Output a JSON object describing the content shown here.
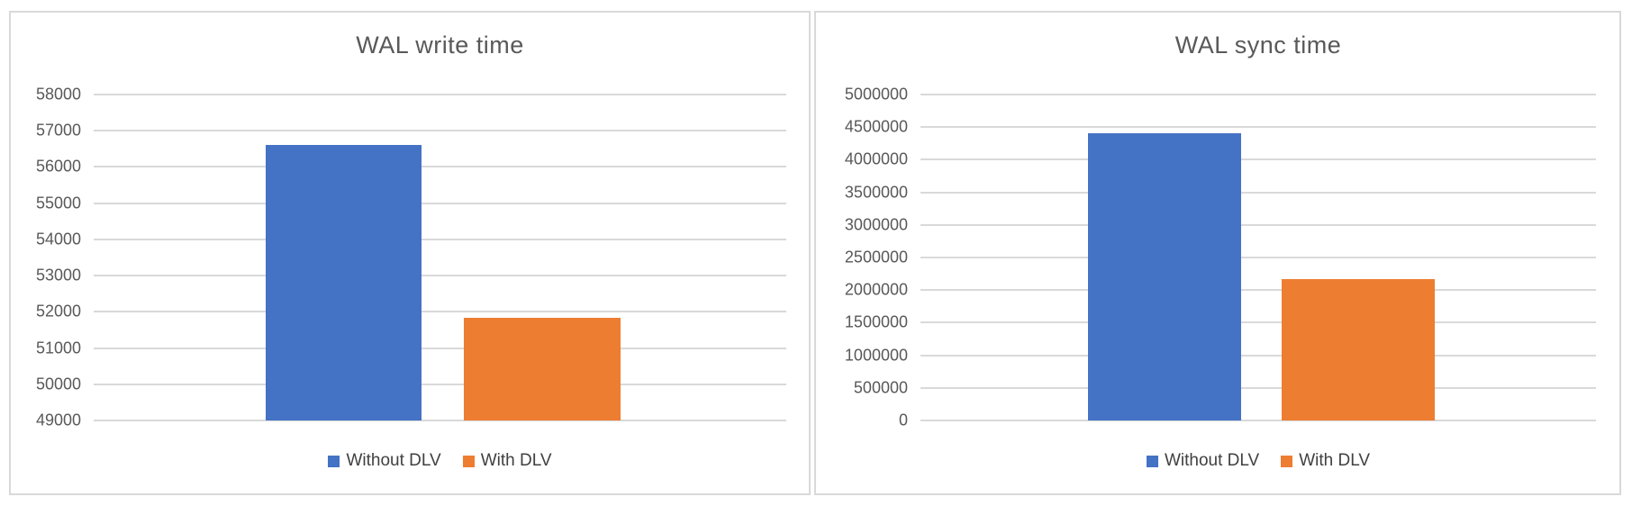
{
  "chart_data": [
    {
      "type": "bar",
      "title": "WAL write time",
      "categories": [
        ""
      ],
      "series": [
        {
          "name": "Without DLV",
          "values": [
            56620
          ],
          "color": "#4472C4"
        },
        {
          "name": "With DLV",
          "values": [
            51840
          ],
          "color": "#ED7D31"
        }
      ],
      "ylim": [
        49000,
        58000
      ],
      "ytick_step": 1000,
      "ytick_labels": [
        "58000",
        "57000",
        "56000",
        "55000",
        "54000",
        "53000",
        "52000",
        "51000",
        "50000",
        "49000"
      ],
      "xlabel": "",
      "ylabel": "",
      "grid": true,
      "legend_position": "bottom"
    },
    {
      "type": "bar",
      "title": "WAL sync time",
      "categories": [
        ""
      ],
      "series": [
        {
          "name": "Without DLV",
          "values": [
            4400000
          ],
          "color": "#4472C4"
        },
        {
          "name": "With DLV",
          "values": [
            2170000
          ],
          "color": "#ED7D31"
        }
      ],
      "ylim": [
        0,
        5000000
      ],
      "ytick_step": 500000,
      "ytick_labels": [
        "5000000",
        "4500000",
        "4000000",
        "3500000",
        "3000000",
        "2500000",
        "2000000",
        "1500000",
        "1000000",
        "500000",
        "0"
      ],
      "xlabel": "",
      "ylabel": "",
      "grid": true,
      "legend_position": "bottom"
    }
  ],
  "styles": {
    "gridline_color": "#D9D9D9",
    "panel_border_color": "#D9D9D9",
    "title_color": "#595959",
    "tick_label_color": "#595959",
    "legend_text_color": "#404040"
  }
}
